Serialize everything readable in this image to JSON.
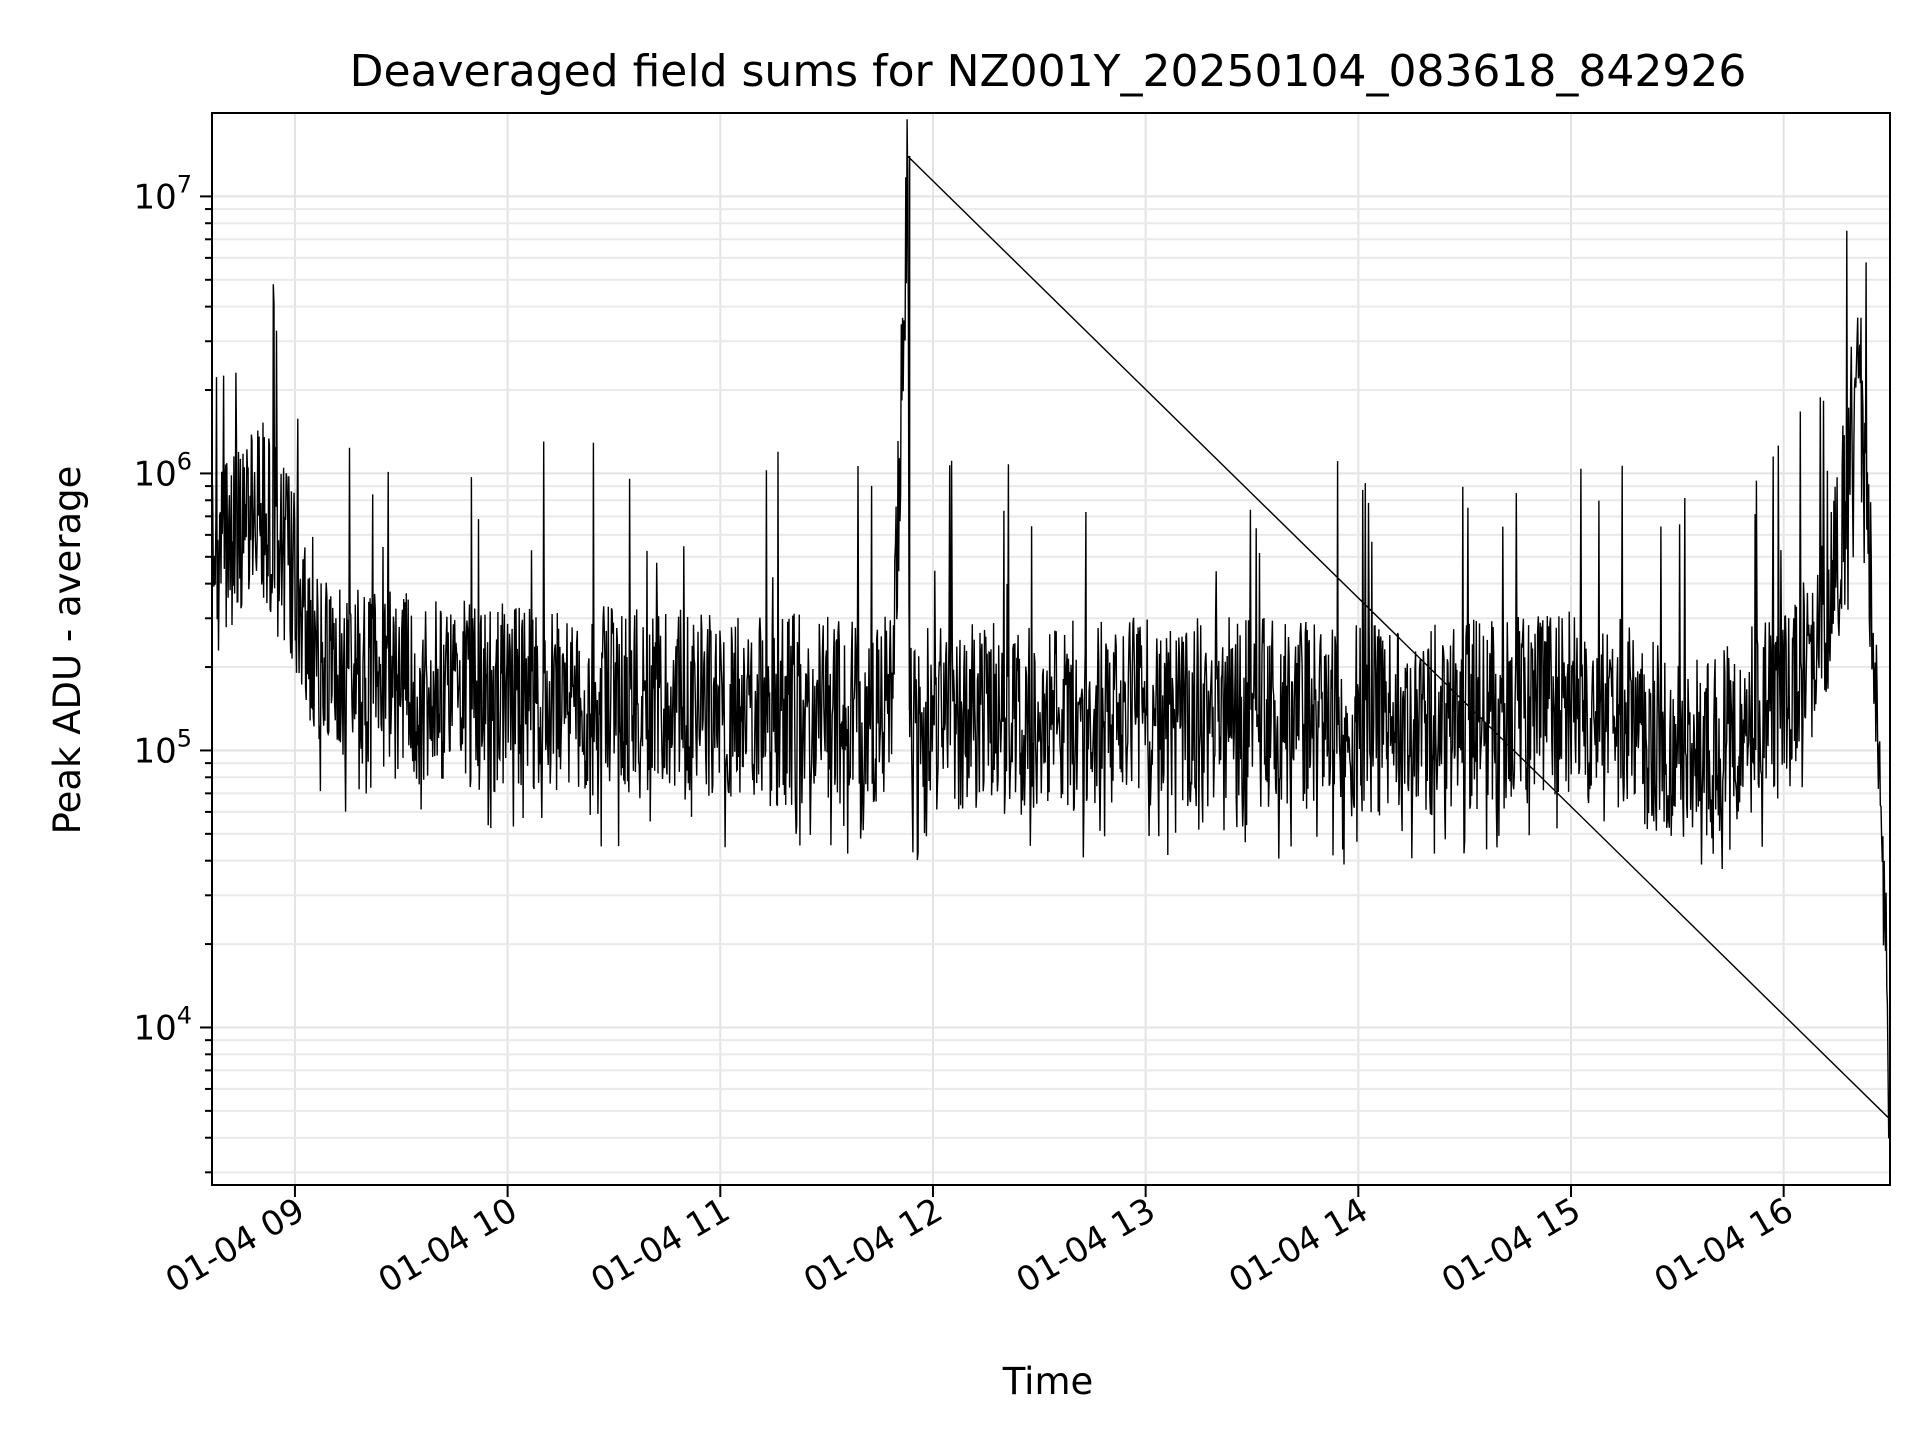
{
  "chart_data": {
    "type": "line",
    "title": "Deaveraged field sums for NZ001Y_20250104_083618_842926",
    "xlabel": "Time",
    "ylabel": "Peak ADU - average",
    "yscale": "log",
    "xlim_hours": [
      8.61,
      16.5
    ],
    "ylim": [
      2700,
      20000000
    ],
    "grid": "on",
    "line_color": "#000000",
    "x_ticks": [
      {
        "value": 9,
        "label": "01-04 09"
      },
      {
        "value": 10,
        "label": "01-04 10"
      },
      {
        "value": 11,
        "label": "01-04 11"
      },
      {
        "value": 12,
        "label": "01-04 12"
      },
      {
        "value": 13,
        "label": "01-04 13"
      },
      {
        "value": 14,
        "label": "01-04 14"
      },
      {
        "value": 15,
        "label": "01-04 15"
      },
      {
        "value": 16,
        "label": "01-04 16"
      }
    ],
    "y_ticks": [
      {
        "value": 10000,
        "base": "10",
        "exp": "4"
      },
      {
        "value": 100000,
        "base": "10",
        "exp": "5"
      },
      {
        "value": 1000000,
        "base": "10",
        "exp": "6"
      },
      {
        "value": 10000000,
        "base": "10",
        "exp": "7"
      }
    ],
    "series": [
      {
        "x": [
          8.61,
          8.65,
          8.7,
          8.75,
          8.8,
          8.85,
          8.9,
          8.95,
          9.0,
          9.05,
          9.1,
          9.15,
          9.2,
          9.3,
          9.4,
          9.5,
          9.6,
          9.7,
          9.8,
          9.9,
          10.0,
          10.2,
          10.4,
          10.6,
          10.8,
          11.0,
          11.2,
          11.4,
          11.6,
          11.8,
          11.85,
          11.88,
          11.89,
          11.9,
          11.95,
          12.0,
          12.2,
          12.4,
          12.6,
          12.8,
          13.0,
          13.2,
          13.4,
          13.6,
          13.8,
          14.0,
          14.2,
          14.4,
          14.6,
          14.8,
          15.0,
          15.2,
          15.4,
          15.6,
          15.8,
          16.0,
          16.1,
          16.2,
          16.25,
          16.3,
          16.35,
          16.38,
          16.42,
          16.45,
          16.48,
          16.5
        ],
        "y": [
          450000,
          500000,
          550000,
          650000,
          750000,
          700000,
          600000,
          500000,
          400000,
          300000,
          250000,
          220000,
          200000,
          190000,
          180000,
          170000,
          165000,
          165000,
          160000,
          160000,
          155000,
          150000,
          150000,
          148000,
          145000,
          145000,
          140000,
          140000,
          140000,
          145000,
          1500000,
          14000000,
          140000,
          130000,
          130000,
          130000,
          130000,
          130000,
          132000,
          135000,
          138000,
          138000,
          138000,
          135000,
          130000,
          128000,
          128000,
          130000,
          135000,
          140000,
          145000,
          140000,
          110000,
          100000,
          120000,
          150000,
          200000,
          300000,
          500000,
          1000000,
          2500000,
          1000000,
          300000,
          90000,
          20000,
          4000
        ]
      }
    ]
  }
}
